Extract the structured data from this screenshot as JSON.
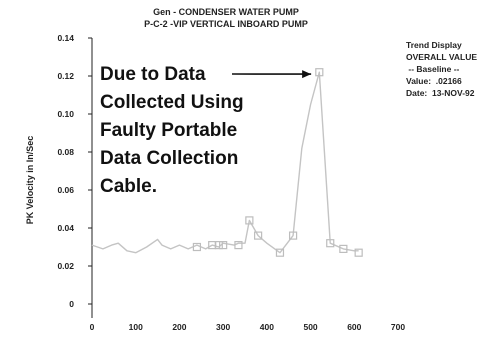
{
  "chart_data": {
    "type": "line",
    "title_lines": [
      "Gen   - CONDENSER WATER PUMP",
      "P-C-2    -VIP   VERTICAL INBOARD PUMP"
    ],
    "xlabel": "",
    "ylabel": "PK Velocity in In/Sec",
    "xlim": [
      0,
      700
    ],
    "ylim": [
      0,
      0.14
    ],
    "x_ticks": [
      0,
      100,
      200,
      300,
      400,
      500,
      600,
      700
    ],
    "y_ticks": [
      0,
      0.02,
      0.04,
      0.06,
      0.08,
      0.1,
      0.12,
      0.14
    ],
    "y_tick_labels": [
      "0",
      "0.02",
      "0.04",
      "0.06",
      "0.08",
      "0.10",
      "0.12",
      "0.14"
    ],
    "series": [
      {
        "x": [
          0,
          25,
          45,
          60,
          80,
          100,
          125,
          150,
          160,
          180,
          200,
          220,
          240,
          260,
          275,
          290,
          300,
          325,
          335,
          350,
          360,
          380,
          400,
          430,
          460,
          480,
          500,
          520,
          545,
          575,
          600,
          610
        ],
        "y": [
          0.031,
          0.029,
          0.031,
          0.032,
          0.028,
          0.027,
          0.03,
          0.034,
          0.031,
          0.029,
          0.031,
          0.029,
          0.031,
          0.029,
          0.031,
          0.03,
          0.032,
          0.031,
          0.032,
          0.032,
          0.044,
          0.036,
          0.032,
          0.027,
          0.036,
          0.082,
          0.105,
          0.122,
          0.032,
          0.029,
          0.028,
          0.028
        ]
      }
    ],
    "marker_x": [
      240,
      275,
      290,
      300,
      335,
      360,
      380,
      430,
      460,
      520,
      545,
      575,
      610
    ],
    "marker_y": [
      0.03,
      0.031,
      0.031,
      0.031,
      0.031,
      0.044,
      0.036,
      0.027,
      0.036,
      0.122,
      0.032,
      0.029,
      0.027
    ],
    "annotation": {
      "lines": [
        "Due to Data",
        "Collected Using",
        "Faulty Portable",
        "Data Collection",
        "Cable."
      ],
      "arrow_target": [
        515,
        0.121
      ]
    },
    "info_box": [
      "Trend Display",
      "OVERALL VALUE",
      " -- Baseline --",
      "Value:  .02166",
      "Date:  13-NOV-92"
    ],
    "colors": {
      "line": "#c4c4c4",
      "marker": "#bdbdbd",
      "axes": "#222222",
      "text": "#111111"
    }
  }
}
